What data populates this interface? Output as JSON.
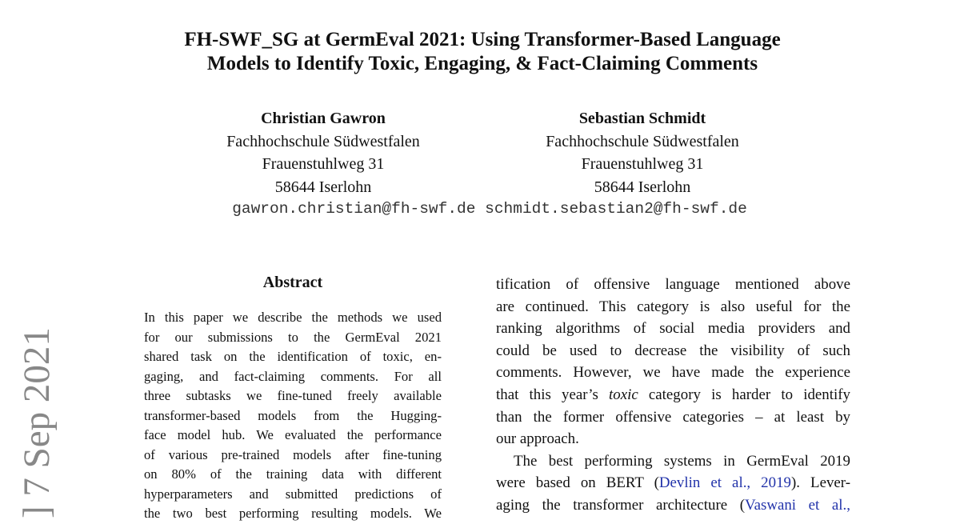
{
  "title": [
    "FH-SWF_SG at GermEval 2021: Using Transformer-Based Language",
    "Models to Identify Toxic, Engaging, & Fact-Claiming Comments"
  ],
  "authors": [
    {
      "name": "Christian Gawron",
      "affiliation": "Fachhochschule Südwestfalen",
      "street": "Frauenstuhlweg 31",
      "city": "58644 Iserlohn",
      "email": "gawron.christian@fh-swf.de"
    },
    {
      "name": "Sebastian Schmidt",
      "affiliation": "Fachhochschule Südwestfalen",
      "street": "Frauenstuhlweg 31",
      "city": "58644 Iserlohn",
      "email": "schmidt.sebastian2@fh-swf.de"
    }
  ],
  "arxiv_stamp": "] 7 Sep 2021",
  "abstract": {
    "heading": "Abstract",
    "lines": [
      "In this paper we describe the methods we used",
      "for our submissions to the GermEval 2021",
      "shared task on the identification of toxic, en-",
      "gaging, and fact-claiming comments.  For all",
      "three subtasks we fine-tuned freely available",
      "transformer-based models from the Hugging-",
      "face model hub. We evaluated the performance",
      "of various pre-trained models after fine-tuning",
      "on 80% of the training data with different",
      "hyperparameters and submitted predictions of",
      "the two best performing resulting models. We"
    ]
  },
  "right_column": {
    "lines": [
      "tification of offensive language mentioned above",
      "are continued. This category is also useful for the",
      "ranking algorithms of social media providers and",
      "could be used to decrease the visibility of such",
      "comments. However, we have made the experience",
      "than the former offensive categories – at least by",
      "our approach."
    ],
    "line6_pre": "that this year’s ",
    "line6_em": "toxic",
    "line6_post": " category is harder to identify",
    "p2_line1": "The best performing systems in GermEval 2019",
    "p2_line2_pre": "were based on BERT (",
    "p2_line2_cite": "Devlin et al., 2019",
    "p2_line2_post": "). Lever-",
    "p2_line3_pre": "aging the transformer architecture (",
    "p2_line3_cite": "Vaswani et al.,",
    "link_color": "#2233aa"
  }
}
